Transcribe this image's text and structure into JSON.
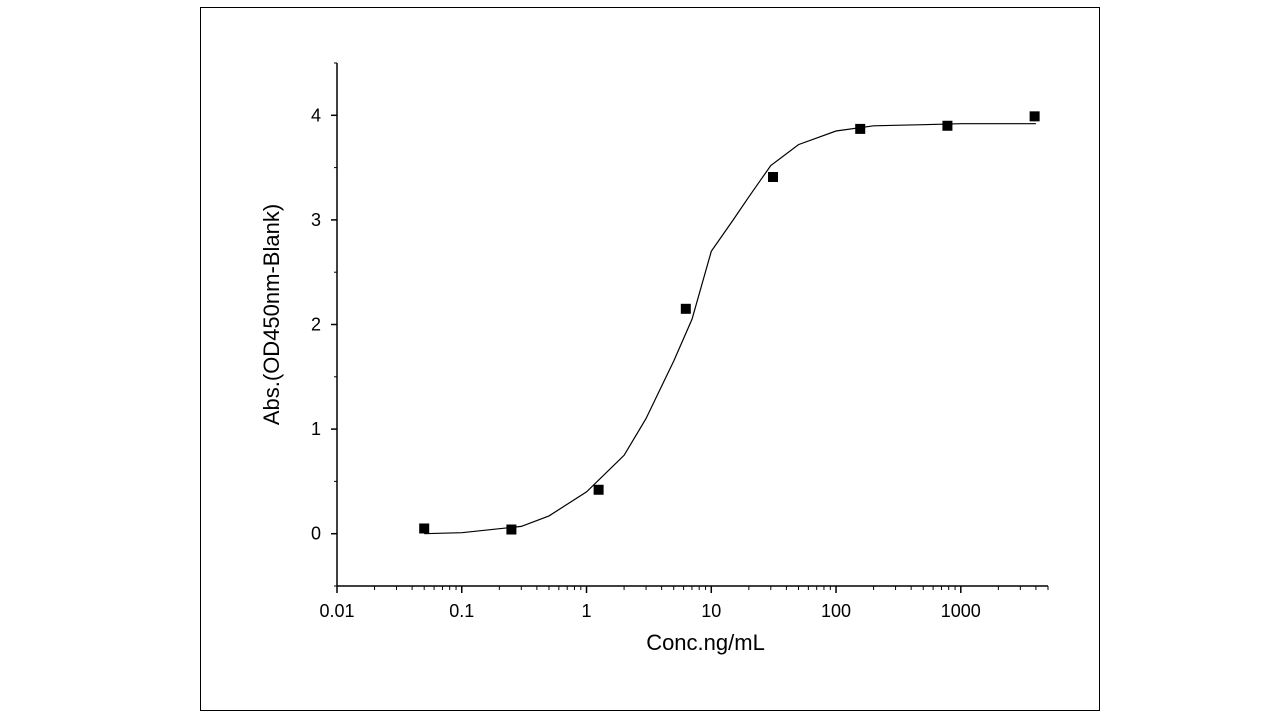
{
  "chart_data": {
    "type": "scatter",
    "title": "",
    "xlabel": "Conc.ng/mL",
    "ylabel": "Abs.(OD450nm-Blank)",
    "x_scale": "log",
    "xlim": [
      0.01,
      5000
    ],
    "ylim": [
      -0.5,
      4.5
    ],
    "x_ticks": [
      0.01,
      0.1,
      1,
      10,
      100,
      1000
    ],
    "x_tick_labels": [
      "0.01",
      "0.1",
      "1",
      "10",
      "100",
      "1000"
    ],
    "y_ticks": [
      0,
      1,
      2,
      3,
      4
    ],
    "y_tick_labels": [
      "0",
      "1",
      "2",
      "3",
      "4"
    ],
    "grid": false,
    "legend": "none",
    "series": [
      {
        "kind": "points",
        "marker": "square",
        "x": [
          0.05,
          0.25,
          1.25,
          6.25,
          31.25,
          156.25,
          781.25,
          3906.25
        ],
        "y": [
          0.05,
          0.04,
          0.42,
          2.15,
          3.41,
          3.87,
          3.9,
          3.99
        ]
      },
      {
        "kind": "fit",
        "x": [
          0.05,
          0.1,
          0.3,
          0.5,
          1,
          2,
          3,
          5,
          7,
          10,
          15,
          20,
          30,
          50,
          100,
          200,
          500,
          1000,
          4000
        ],
        "y": [
          0.0,
          0.01,
          0.07,
          0.17,
          0.4,
          0.75,
          1.1,
          1.65,
          2.05,
          2.7,
          3.0,
          3.22,
          3.52,
          3.72,
          3.85,
          3.9,
          3.91,
          3.92,
          3.92
        ]
      }
    ],
    "colors": {
      "marker": "#000000",
      "line": "#000000",
      "axis": "#000000"
    }
  }
}
